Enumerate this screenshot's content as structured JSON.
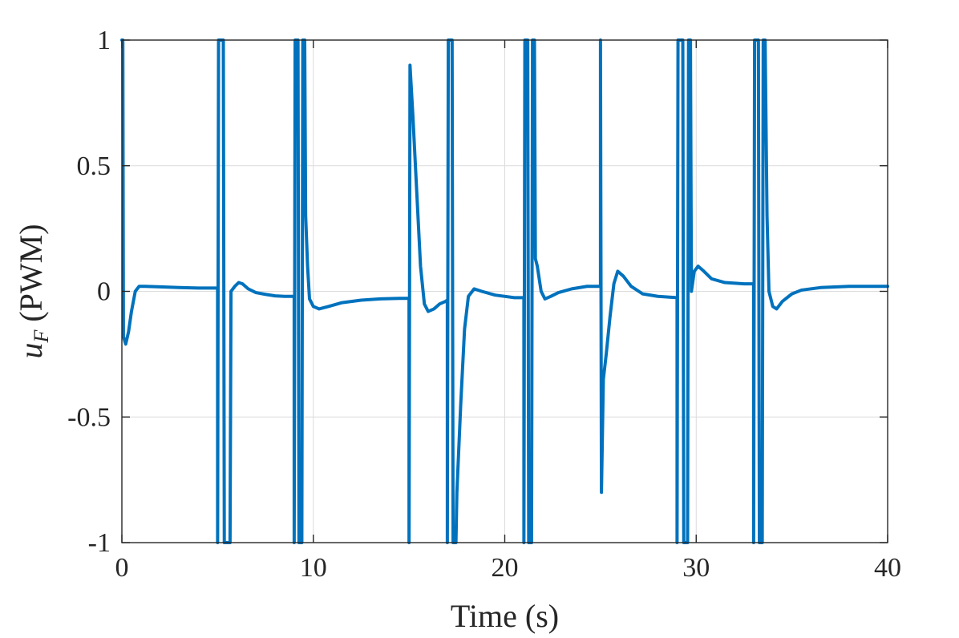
{
  "chart_data": {
    "type": "line",
    "xlabel": "Time (s)",
    "ylabel": "u_F (PWM)",
    "ylabel_main": "u",
    "ylabel_sub": "F",
    "ylabel_rest": " (PWM)",
    "xlim": [
      0,
      40
    ],
    "ylim": [
      -1,
      1
    ],
    "xticks": [
      0,
      10,
      20,
      30,
      40
    ],
    "xtick_labels": [
      "0",
      "10",
      "20",
      "30",
      "40"
    ],
    "yticks": [
      -1,
      -0.5,
      0,
      0.5,
      1
    ],
    "ytick_labels": [
      "-1",
      "-0.5",
      "0",
      "0.5",
      "1"
    ],
    "grid": true,
    "series": [
      {
        "color": "#0072BD",
        "points": [
          [
            0.0,
            1.0
          ],
          [
            0.05,
            1.0
          ],
          [
            0.08,
            -0.18
          ],
          [
            0.2,
            -0.21
          ],
          [
            0.35,
            -0.16
          ],
          [
            0.5,
            -0.08
          ],
          [
            0.7,
            0.0
          ],
          [
            0.9,
            0.02
          ],
          [
            1.2,
            0.02
          ],
          [
            2.0,
            0.018
          ],
          [
            3.0,
            0.015
          ],
          [
            4.0,
            0.013
          ],
          [
            5.0,
            0.013
          ],
          [
            5.0,
            -1.0
          ],
          [
            5.05,
            1.0
          ],
          [
            5.3,
            1.0
          ],
          [
            5.35,
            -1.0
          ],
          [
            5.65,
            -1.0
          ],
          [
            5.7,
            0.0
          ],
          [
            5.9,
            0.02
          ],
          [
            6.1,
            0.035
          ],
          [
            6.3,
            0.03
          ],
          [
            6.6,
            0.01
          ],
          [
            7.0,
            -0.005
          ],
          [
            7.5,
            -0.012
          ],
          [
            8.0,
            -0.018
          ],
          [
            8.5,
            -0.02
          ],
          [
            9.0,
            -0.02
          ],
          [
            9.0,
            -1.0
          ],
          [
            9.05,
            1.0
          ],
          [
            9.2,
            1.0
          ],
          [
            9.25,
            -1.0
          ],
          [
            9.4,
            -1.0
          ],
          [
            9.45,
            1.0
          ],
          [
            9.55,
            1.0
          ],
          [
            9.6,
            0.3
          ],
          [
            9.7,
            0.1
          ],
          [
            9.8,
            -0.03
          ],
          [
            10.0,
            -0.06
          ],
          [
            10.3,
            -0.07
          ],
          [
            10.8,
            -0.06
          ],
          [
            11.5,
            -0.045
          ],
          [
            12.5,
            -0.035
          ],
          [
            13.5,
            -0.03
          ],
          [
            14.5,
            -0.028
          ],
          [
            15.0,
            -0.028
          ],
          [
            15.0,
            -1.0
          ],
          [
            15.05,
            0.9
          ],
          [
            15.2,
            0.7
          ],
          [
            15.4,
            0.4
          ],
          [
            15.6,
            0.1
          ],
          [
            15.8,
            -0.05
          ],
          [
            16.0,
            -0.08
          ],
          [
            16.3,
            -0.07
          ],
          [
            16.6,
            -0.05
          ],
          [
            16.9,
            -0.04
          ],
          [
            17.0,
            -0.035
          ],
          [
            17.0,
            -1.0
          ],
          [
            17.05,
            1.0
          ],
          [
            17.25,
            1.0
          ],
          [
            17.3,
            -1.0
          ],
          [
            17.45,
            -1.0
          ],
          [
            17.5,
            -0.8
          ],
          [
            17.7,
            -0.45
          ],
          [
            17.9,
            -0.15
          ],
          [
            18.1,
            -0.02
          ],
          [
            18.4,
            0.01
          ],
          [
            18.8,
            0.0
          ],
          [
            19.5,
            -0.015
          ],
          [
            20.5,
            -0.025
          ],
          [
            21.0,
            -0.025
          ],
          [
            21.0,
            -1.0
          ],
          [
            21.05,
            1.0
          ],
          [
            21.2,
            1.0
          ],
          [
            21.25,
            -1.0
          ],
          [
            21.4,
            -1.0
          ],
          [
            21.45,
            1.0
          ],
          [
            21.55,
            1.0
          ],
          [
            21.6,
            0.13
          ],
          [
            21.7,
            0.1
          ],
          [
            21.9,
            0.0
          ],
          [
            22.1,
            -0.03
          ],
          [
            22.4,
            -0.02
          ],
          [
            22.8,
            -0.005
          ],
          [
            23.5,
            0.01
          ],
          [
            24.3,
            0.02
          ],
          [
            25.0,
            0.02
          ],
          [
            25.0,
            1.0
          ],
          [
            25.05,
            -0.8
          ],
          [
            25.15,
            -0.35
          ],
          [
            25.3,
            -0.25
          ],
          [
            25.5,
            -0.1
          ],
          [
            25.7,
            0.03
          ],
          [
            25.9,
            0.08
          ],
          [
            26.2,
            0.06
          ],
          [
            26.6,
            0.02
          ],
          [
            27.2,
            -0.01
          ],
          [
            28.0,
            -0.02
          ],
          [
            29.0,
            -0.025
          ],
          [
            29.0,
            -1.0
          ],
          [
            29.05,
            1.0
          ],
          [
            29.3,
            1.0
          ],
          [
            29.35,
            -1.0
          ],
          [
            29.55,
            -1.0
          ],
          [
            29.6,
            1.0
          ],
          [
            29.7,
            1.0
          ],
          [
            29.75,
            0.0
          ],
          [
            29.9,
            0.08
          ],
          [
            30.1,
            0.1
          ],
          [
            30.4,
            0.08
          ],
          [
            30.8,
            0.05
          ],
          [
            31.5,
            0.035
          ],
          [
            32.5,
            0.03
          ],
          [
            33.0,
            0.03
          ],
          [
            33.0,
            -1.0
          ],
          [
            33.05,
            1.0
          ],
          [
            33.25,
            1.0
          ],
          [
            33.3,
            -1.0
          ],
          [
            33.45,
            -1.0
          ],
          [
            33.5,
            1.0
          ],
          [
            33.6,
            1.0
          ],
          [
            33.7,
            0.3
          ],
          [
            33.8,
            0.0
          ],
          [
            34.0,
            -0.06
          ],
          [
            34.2,
            -0.07
          ],
          [
            34.5,
            -0.04
          ],
          [
            35.0,
            -0.01
          ],
          [
            35.5,
            0.005
          ],
          [
            36.5,
            0.015
          ],
          [
            38.0,
            0.02
          ],
          [
            40.0,
            0.02
          ]
        ]
      }
    ]
  }
}
